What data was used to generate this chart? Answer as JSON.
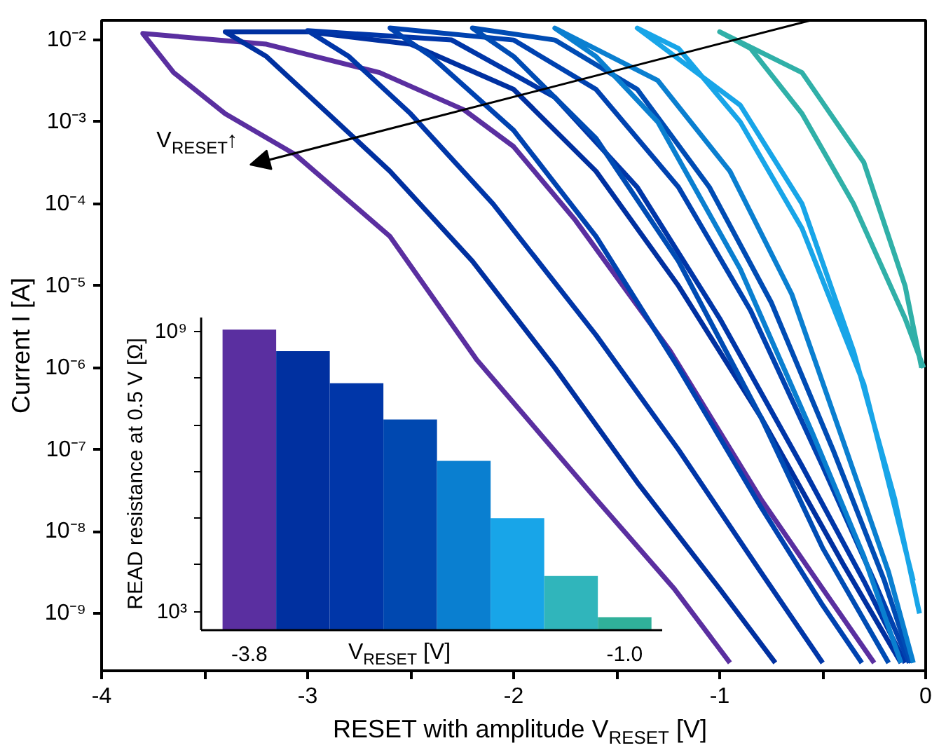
{
  "chart_data": [
    {
      "type": "line",
      "xlabel": "RESET with amplitude V$_{RESET}$ [V]",
      "ylabel": "Current I [A]",
      "xlim": [
        -4,
        0
      ],
      "ylim": [
        2e-10,
        0.0174
      ],
      "log": "y",
      "line_style": "solid",
      "grid": false,
      "xticks": [
        -4,
        {
          "value": -3.5,
          "label": null
        },
        -3,
        {
          "value": -2.5,
          "label": null
        },
        -2,
        {
          "value": -1.5,
          "label": null
        },
        -1,
        {
          "value": -0.5,
          "label": null
        },
        0
      ],
      "yticks": [
        {
          "value": 1e-09,
          "label": "10⁻⁹"
        },
        {
          "value": 1e-08,
          "label": "10⁻⁸"
        },
        {
          "value": 1e-07,
          "label": "10⁻⁷"
        },
        {
          "value": 1e-06,
          "label": "10⁻⁶"
        },
        {
          "value": 1e-05,
          "label": "10⁻⁵"
        },
        {
          "value": 0.0001,
          "label": "10⁻⁴"
        },
        {
          "value": 0.001,
          "label": "10⁻³"
        },
        {
          "value": 0.01,
          "label": "10⁻²"
        }
      ],
      "annotations": [
        "V$_{RESET}$↑"
      ],
      "series": [
        {
          "color": "#5a2fa0",
          "x": [
            -0.25,
            -0.5,
            -0.8,
            -1.24,
            -1.7,
            -2.0,
            -2.24,
            -2.65,
            -3.2,
            -3.8,
            -3.65,
            -3.4,
            -3.06,
            -2.6,
            -2.18,
            -1.6,
            -1.22,
            -0.95
          ],
          "values": [
            2.5e-10,
            2e-09,
            2.5e-08,
            1.6e-06,
            6.3e-05,
            0.0005,
            0.0014,
            0.004,
            0.0089,
            0.012,
            0.004,
            0.00126,
            0.0004,
            4e-05,
            1.26e-06,
            2.5e-08,
            2e-09,
            2.5e-10
          ]
        },
        {
          "color": "#0030a0",
          "x": [
            -0.12,
            -0.4,
            -0.8,
            -1.2,
            -1.6,
            -2.0,
            -2.5,
            -3.0,
            -3.4,
            -3.2,
            -2.9,
            -2.6,
            -2.2,
            -1.8,
            -1.4,
            -1.0,
            -0.73
          ],
          "values": [
            2.5e-10,
            4e-09,
            2.5e-07,
            1e-05,
            0.00025,
            0.0025,
            0.0089,
            0.0126,
            0.0126,
            0.0063,
            0.00126,
            0.00025,
            2e-05,
            1e-06,
            4e-08,
            2e-09,
            2.5e-10
          ]
        },
        {
          "color": "#0036a8",
          "x": [
            -0.1,
            -0.3,
            -0.6,
            -1.0,
            -1.4,
            -1.8,
            -2.3,
            -3.0,
            -2.8,
            -2.5,
            -2.1,
            -1.6,
            -1.2,
            -0.8,
            -0.5
          ],
          "values": [
            2.5e-10,
            2.5e-09,
            6.3e-08,
            4e-06,
            0.00016,
            0.002,
            0.01,
            0.013,
            0.0063,
            0.00126,
            0.0001,
            2.5e-06,
            1e-07,
            3.2e-09,
            2.5e-10
          ]
        },
        {
          "color": "#0042b0",
          "x": [
            -0.08,
            -0.25,
            -0.5,
            -0.85,
            -1.2,
            -1.6,
            -2.0,
            -2.6,
            -2.4,
            -2.0,
            -1.6,
            -1.2,
            -0.8,
            -0.5,
            -0.31
          ],
          "values": [
            2.5e-10,
            2.5e-09,
            6.3e-08,
            5e-06,
            0.00016,
            0.0025,
            0.01,
            0.014,
            0.0063,
            0.00079,
            4e-05,
            1e-06,
            2e-08,
            1.26e-09,
            2.5e-10
          ]
        },
        {
          "color": "#004cb4",
          "x": [
            -0.07,
            -0.2,
            -0.45,
            -0.75,
            -1.05,
            -1.4,
            -1.8,
            -2.2,
            -2.0,
            -1.6,
            -1.2,
            -0.8,
            -0.5,
            -0.18
          ],
          "values": [
            2.5e-10,
            2.5e-09,
            1e-07,
            6.3e-06,
            0.00016,
            0.0025,
            0.01,
            0.014,
            0.0063,
            0.00063,
            2e-05,
            2.5e-07,
            6.3e-09,
            2.5e-10
          ]
        },
        {
          "color": "#0a7fd0",
          "x": [
            -0.06,
            -0.18,
            -0.4,
            -0.65,
            -0.95,
            -1.3,
            -1.8,
            -1.6,
            -1.3,
            -0.9,
            -0.55,
            -0.3,
            -0.12
          ],
          "values": [
            2.5e-10,
            3.2e-09,
            1.26e-07,
            7.9e-06,
            0.00025,
            0.0032,
            0.014,
            0.0063,
            0.001,
            1.6e-05,
            1.6e-07,
            5e-09,
            2.5e-10
          ]
        },
        {
          "color": "#18a5e8",
          "x": [
            -0.03,
            -0.15,
            -0.35,
            -0.6,
            -0.9,
            -1.4,
            -1.2,
            -0.9,
            -0.6,
            -0.3,
            -0.06
          ],
          "values": [
            1e-09,
            2.5e-08,
            1.6e-06,
            0.0001,
            0.0016,
            0.014,
            0.0079,
            0.001,
            5e-05,
            6.3e-07,
            2.5e-09
          ]
        },
        {
          "color": "#30b0a8",
          "x": [
            -0.02,
            -0.1,
            -0.3,
            -0.6,
            -1.0,
            -0.85,
            -0.6,
            -0.35,
            -0.1,
            -0.01
          ],
          "values": [
            1e-06,
            1e-05,
            0.00032,
            0.004,
            0.0126,
            0.0079,
            0.00126,
            0.0001,
            4e-06,
            1e-06
          ]
        }
      ]
    },
    {
      "type": "bar",
      "xlabel": "V$_{RESET}$ [V]",
      "ylabel": "READ resistance at 0.5 V [Ω]",
      "log": "y",
      "grid": false,
      "categories": [
        "-3.8",
        null,
        null,
        null,
        null,
        null,
        null,
        "-1.0"
      ],
      "values": [
        1100000000.0,
        380000000.0,
        78000000.0,
        13000000.0,
        1700000.0,
        100000.0,
        5800.0,
        760
      ],
      "colors": [
        "#5a2fa0",
        "#0030a0",
        "#0036a8",
        "#0048b0",
        "#0a7fd0",
        "#18a5e8",
        "#30b5bb",
        "#30b09a"
      ],
      "ylim": [
        400,
        2000000000.0
      ],
      "yticks": [
        {
          "value": 1000,
          "label": "10³"
        },
        {
          "value": 10000.0,
          "label": null
        },
        {
          "value": 100000.0,
          "label": null
        },
        {
          "value": 1000000.0,
          "label": null
        },
        {
          "value": 10000000.0,
          "label": null
        },
        {
          "value": 100000000.0,
          "label": null
        },
        {
          "value": 1000000000.0,
          "label": "10⁹"
        }
      ]
    }
  ]
}
